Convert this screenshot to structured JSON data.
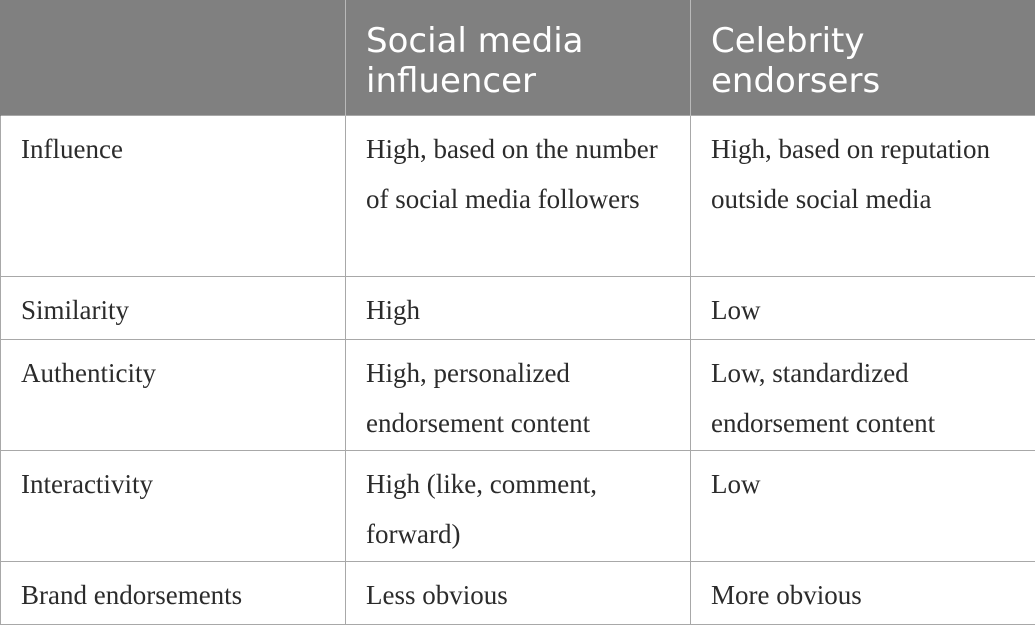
{
  "table": {
    "headers": [
      "",
      "Social media influencer",
      "Celebrity endorsers"
    ],
    "rows": [
      {
        "label": "Influence",
        "social": "High, based on the number of social media followers",
        "celebrity": "High, based on reputation outside social media"
      },
      {
        "label": "Similarity",
        "social": "High",
        "celebrity": "Low"
      },
      {
        "label": "Authenticity",
        "social": "High, personalized endorsement content",
        "celebrity": "Low, standardized endorsement content"
      },
      {
        "label": "Interactivity",
        "social": "High (like, comment, forward)",
        "celebrity": "Low"
      },
      {
        "label": "Brand endorsements",
        "social": "Less obvious",
        "celebrity": "More obvious"
      }
    ]
  }
}
